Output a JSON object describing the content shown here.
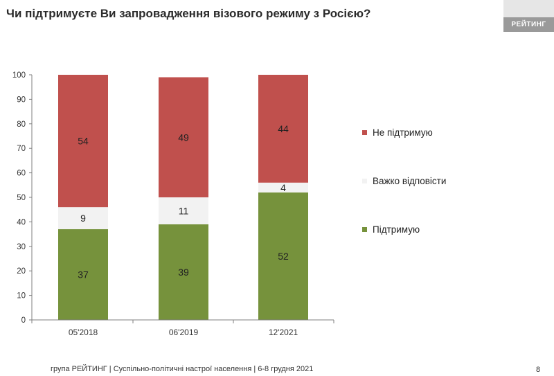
{
  "header": {
    "title": "Чи підтримуєте Ви запровадження візового режиму з Росією?",
    "brand": "РЕЙТИНГ"
  },
  "chart_data": {
    "type": "bar",
    "stacked": true,
    "categories": [
      "05'2018",
      "06'2019",
      "12'2021"
    ],
    "series": [
      {
        "name": "Підтримую",
        "values": [
          37,
          39,
          52
        ],
        "color": "#76923c"
      },
      {
        "name": "Важко відповісти",
        "values": [
          9,
          11,
          4
        ],
        "color": "#f2f2f2"
      },
      {
        "name": "Не підтримую",
        "values": [
          54,
          49,
          44
        ],
        "color": "#c0504d"
      }
    ],
    "ylim": [
      0,
      100
    ],
    "yticks": [
      "0",
      "10",
      "20",
      "30",
      "40",
      "50",
      "60",
      "70",
      "80",
      "90",
      "100"
    ],
    "legend_position": "right",
    "legend_order": [
      2,
      1,
      0
    ],
    "grid": false
  },
  "footer": {
    "text": "група РЕЙТИНГ | Суспільно-політичні настрої населення  | 6-8 грудня 2021",
    "page": "8"
  }
}
